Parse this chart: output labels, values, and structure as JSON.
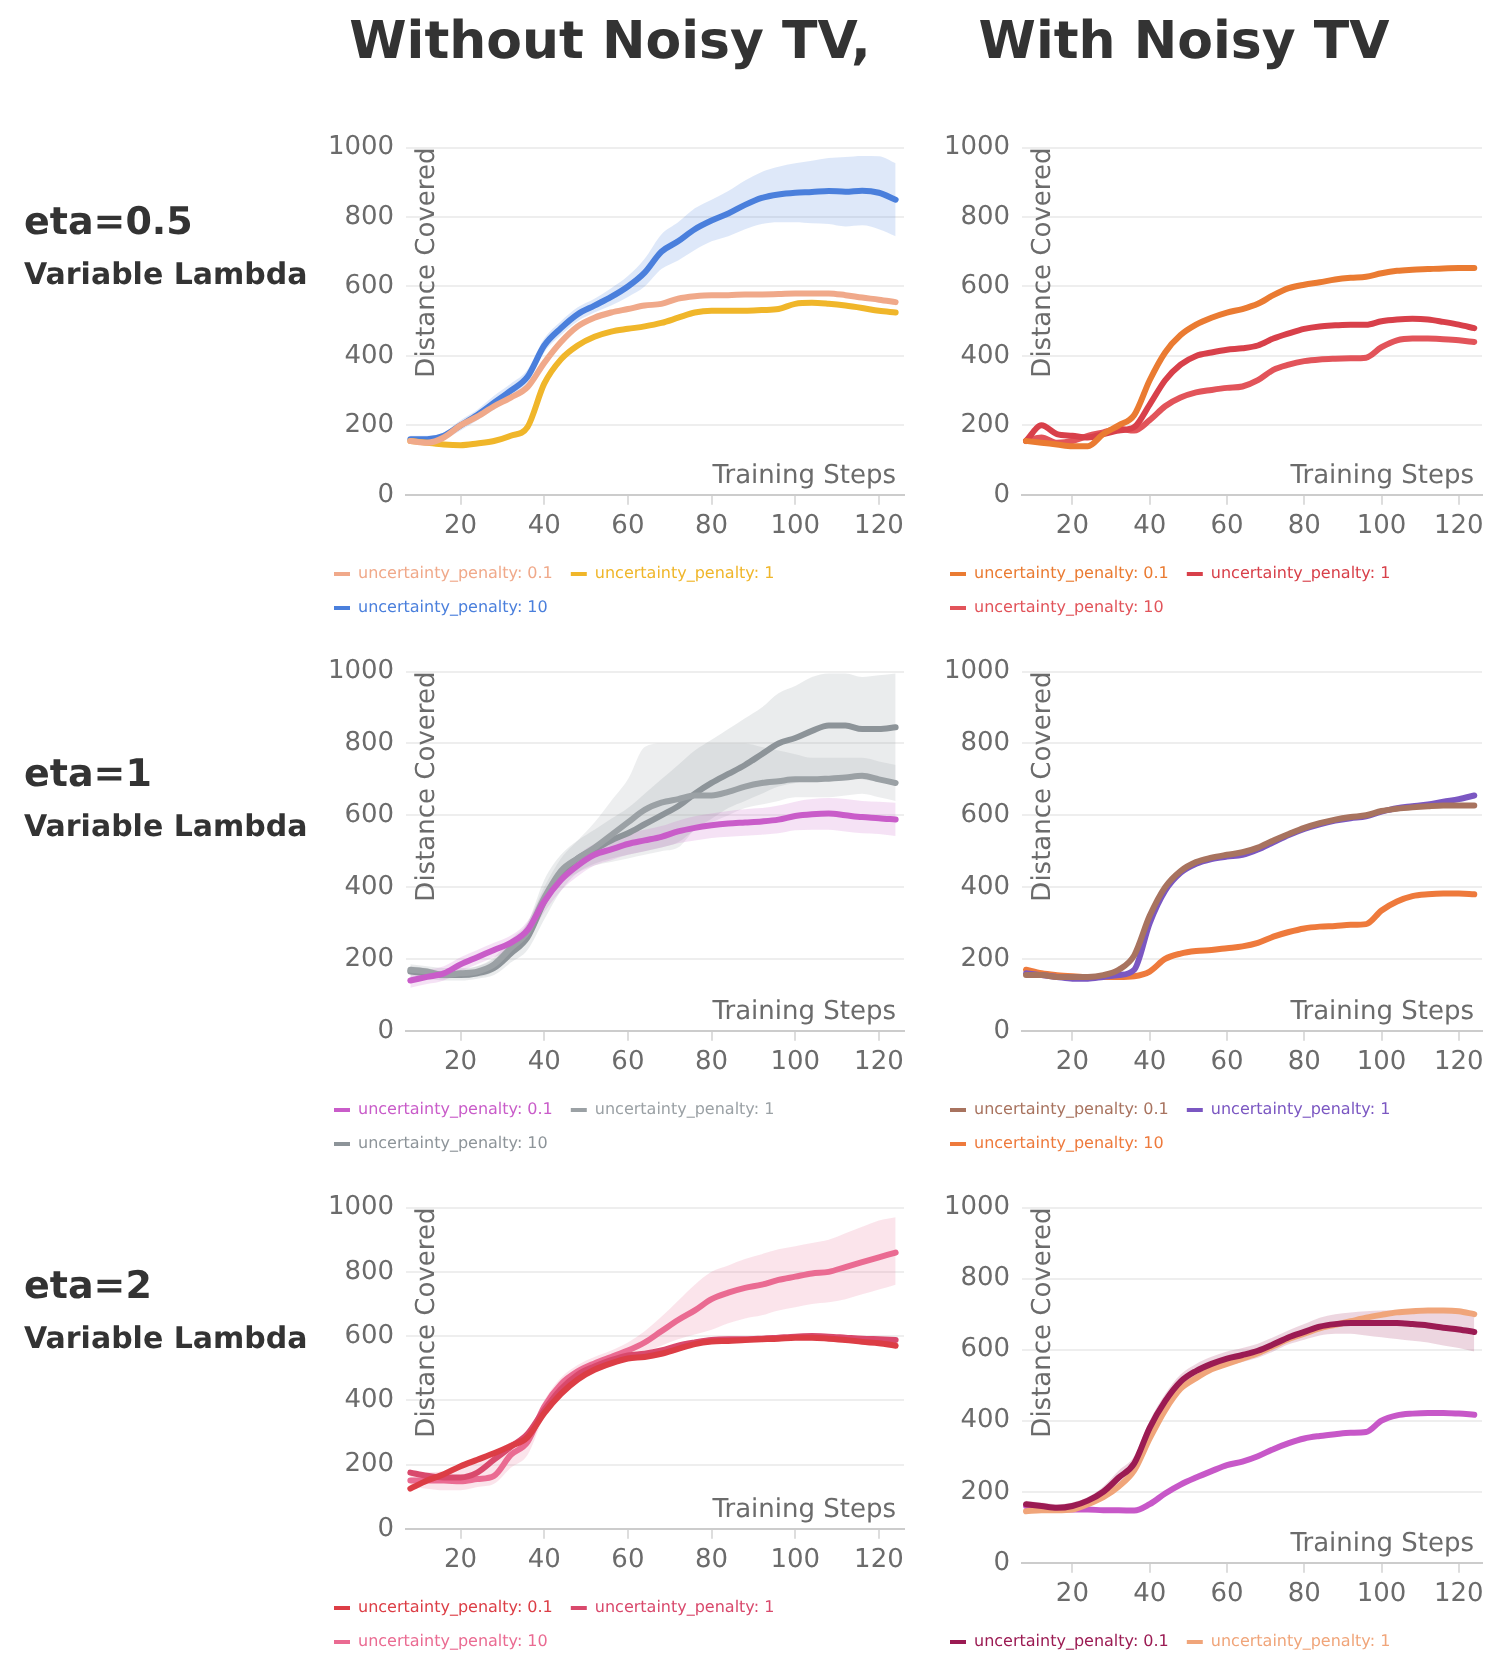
{
  "chart_data": [
    {
      "type": "line",
      "title": "Without Noisy TV,",
      "annotations": [
        "eta=0.5",
        "Variable Lambda"
      ],
      "xlabel": "Training Steps",
      "ylabel": "Distance Covered",
      "x": [
        8,
        12,
        16,
        20,
        24,
        28,
        32,
        36,
        40,
        44,
        48,
        52,
        56,
        60,
        64,
        68,
        72,
        76,
        80,
        84,
        88,
        92,
        96,
        100,
        104,
        108,
        112,
        116,
        120,
        124
      ],
      "xlim": [
        7,
        126
      ],
      "xticks": [
        20,
        40,
        60,
        80,
        100,
        120
      ],
      "ylim": [
        0,
        1000
      ],
      "yticks": [
        0,
        200,
        400,
        600,
        800,
        1000
      ],
      "grid": "y",
      "legend": "bottom",
      "marker": "none",
      "series": [
        {
          "name": "uncertainty_penalty: 0.1",
          "color": "#f0a98a",
          "values": [
            155,
            150,
            165,
            200,
            225,
            255,
            280,
            310,
            380,
            440,
            485,
            510,
            525,
            535,
            545,
            550,
            565,
            572,
            575,
            575,
            577,
            577,
            578,
            580,
            580,
            580,
            575,
            568,
            562,
            555
          ]
        },
        {
          "name": "uncertainty_penalty: 1",
          "color": "#f0b62a",
          "values": [
            155,
            150,
            145,
            143,
            148,
            155,
            170,
            195,
            320,
            390,
            430,
            455,
            470,
            478,
            485,
            495,
            510,
            525,
            530,
            530,
            530,
            532,
            535,
            550,
            553,
            550,
            545,
            538,
            530,
            525
          ]
        },
        {
          "name": "uncertainty_penalty: 10",
          "color": "#4a7fdc",
          "values": [
            160,
            160,
            170,
            200,
            230,
            265,
            300,
            340,
            430,
            480,
            520,
            545,
            570,
            600,
            640,
            700,
            730,
            765,
            790,
            810,
            835,
            855,
            865,
            870,
            872,
            875,
            873,
            876,
            870,
            850
          ],
          "upper": [
            170,
            170,
            180,
            215,
            245,
            285,
            320,
            360,
            450,
            500,
            540,
            565,
            595,
            630,
            680,
            750,
            785,
            825,
            850,
            875,
            905,
            930,
            945,
            955,
            962,
            970,
            973,
            976,
            975,
            955
          ],
          "lower": [
            150,
            150,
            160,
            185,
            215,
            245,
            280,
            320,
            410,
            460,
            500,
            525,
            545,
            570,
            600,
            650,
            675,
            705,
            730,
            745,
            765,
            780,
            785,
            785,
            782,
            780,
            773,
            776,
            765,
            745
          ]
        }
      ]
    },
    {
      "type": "line",
      "title": "With Noisy TV",
      "xlabel": "Training Steps",
      "ylabel": "Distance Covered",
      "x": [
        8,
        12,
        16,
        20,
        24,
        28,
        32,
        36,
        40,
        44,
        48,
        52,
        56,
        60,
        64,
        68,
        72,
        76,
        80,
        84,
        88,
        92,
        96,
        100,
        104,
        108,
        112,
        116,
        120,
        124
      ],
      "xlim": [
        7,
        126
      ],
      "xticks": [
        20,
        40,
        60,
        80,
        100,
        120
      ],
      "ylim": [
        0,
        1000
      ],
      "yticks": [
        0,
        200,
        400,
        600,
        800,
        1000
      ],
      "grid": "y",
      "legend": "bottom",
      "marker": "none",
      "series": [
        {
          "name": "uncertainty_penalty: 0.1",
          "color": "#ea7b32",
          "values": [
            155,
            150,
            145,
            140,
            140,
            175,
            200,
            230,
            330,
            410,
            460,
            490,
            510,
            525,
            535,
            550,
            575,
            595,
            605,
            612,
            620,
            625,
            628,
            638,
            645,
            648,
            650,
            652,
            653,
            653
          ]
        },
        {
          "name": "uncertainty_penalty: 1",
          "color": "#d8404a",
          "values": [
            155,
            200,
            175,
            170,
            165,
            175,
            185,
            195,
            260,
            330,
            375,
            400,
            410,
            418,
            422,
            430,
            450,
            465,
            478,
            485,
            488,
            490,
            490,
            500,
            505,
            507,
            505,
            498,
            490,
            480
          ]
        },
        {
          "name": "uncertainty_penalty: 10",
          "color": "#e2545a",
          "values": [
            155,
            165,
            150,
            155,
            170,
            180,
            190,
            185,
            215,
            255,
            280,
            295,
            302,
            308,
            312,
            330,
            360,
            375,
            385,
            390,
            392,
            393,
            395,
            425,
            445,
            450,
            450,
            448,
            445,
            440
          ]
        }
      ]
    },
    {
      "type": "line",
      "annotations": [
        "eta=1",
        "Variable Lambda"
      ],
      "xlabel": "Training Steps",
      "ylabel": "Distance Covered",
      "x": [
        8,
        12,
        16,
        20,
        24,
        28,
        32,
        36,
        40,
        44,
        48,
        52,
        56,
        60,
        64,
        68,
        72,
        76,
        80,
        84,
        88,
        92,
        96,
        100,
        104,
        108,
        112,
        116,
        120,
        124
      ],
      "xlim": [
        7,
        126
      ],
      "xticks": [
        20,
        40,
        60,
        80,
        100,
        120
      ],
      "ylim": [
        0,
        1000
      ],
      "yticks": [
        0,
        200,
        400,
        600,
        800,
        1000
      ],
      "grid": "y",
      "legend": "bottom",
      "marker": "none",
      "series": [
        {
          "name": "uncertainty_penalty: 0.1",
          "color": "#c95cc9",
          "values": [
            140,
            150,
            160,
            185,
            205,
            225,
            245,
            280,
            360,
            420,
            460,
            490,
            505,
            520,
            530,
            540,
            555,
            565,
            572,
            577,
            580,
            583,
            588,
            598,
            603,
            605,
            600,
            595,
            592,
            588
          ],
          "upper": [
            160,
            170,
            180,
            205,
            225,
            245,
            265,
            305,
            390,
            450,
            490,
            520,
            535,
            550,
            560,
            570,
            585,
            597,
            605,
            612,
            617,
            620,
            627,
            638,
            645,
            648,
            645,
            640,
            638,
            635
          ],
          "lower": [
            120,
            130,
            140,
            165,
            185,
            205,
            225,
            255,
            330,
            390,
            430,
            460,
            475,
            490,
            500,
            510,
            522,
            530,
            537,
            540,
            543,
            546,
            550,
            558,
            560,
            560,
            555,
            550,
            548,
            542
          ]
        },
        {
          "name": "uncertainty_penalty: 1",
          "color": "#9ba1a5",
          "values": [
            170,
            165,
            155,
            160,
            165,
            185,
            230,
            275,
            370,
            445,
            480,
            510,
            545,
            580,
            615,
            635,
            645,
            655,
            655,
            665,
            680,
            690,
            695,
            700,
            700,
            702,
            705,
            710,
            700,
            690
          ],
          "upper": [
            180,
            175,
            165,
            170,
            180,
            205,
            255,
            300,
            400,
            480,
            530,
            580,
            640,
            700,
            790,
            800,
            800,
            800,
            800,
            800,
            800,
            790,
            780,
            770,
            760,
            760,
            760,
            760,
            750,
            740
          ],
          "lower": [
            160,
            155,
            145,
            150,
            150,
            165,
            205,
            250,
            340,
            410,
            440,
            460,
            470,
            480,
            490,
            500,
            510,
            560,
            580,
            600,
            620,
            630,
            640,
            650,
            650,
            650,
            655,
            660,
            650,
            640
          ]
        },
        {
          "name": "uncertainty_penalty: 10",
          "color": "#8d9499",
          "values": [
            165,
            160,
            155,
            155,
            160,
            175,
            215,
            260,
            360,
            435,
            480,
            505,
            530,
            550,
            575,
            600,
            625,
            660,
            690,
            715,
            740,
            770,
            800,
            815,
            835,
            850,
            850,
            840,
            840,
            845
          ],
          "upper": [
            185,
            180,
            175,
            175,
            180,
            200,
            245,
            300,
            420,
            490,
            530,
            560,
            590,
            620,
            660,
            700,
            740,
            780,
            810,
            840,
            870,
            900,
            940,
            960,
            985,
            995,
            995,
            985,
            990,
            995
          ],
          "lower": [
            150,
            145,
            140,
            140,
            145,
            155,
            190,
            225,
            310,
            390,
            440,
            465,
            480,
            490,
            500,
            510,
            525,
            560,
            590,
            620,
            640,
            660,
            680,
            690,
            700,
            710,
            710,
            700,
            695,
            700
          ]
        }
      ]
    },
    {
      "type": "line",
      "xlabel": "Training Steps",
      "ylabel": "Distance Covered",
      "x": [
        8,
        12,
        16,
        20,
        24,
        28,
        32,
        36,
        40,
        44,
        48,
        52,
        56,
        60,
        64,
        68,
        72,
        76,
        80,
        84,
        88,
        92,
        96,
        100,
        104,
        108,
        112,
        116,
        120,
        124
      ],
      "xlim": [
        7,
        126
      ],
      "xticks": [
        20,
        40,
        60,
        80,
        100,
        120
      ],
      "ylim": [
        0,
        1000
      ],
      "yticks": [
        0,
        200,
        400,
        600,
        800,
        1000
      ],
      "grid": "y",
      "legend": "bottom",
      "marker": "none",
      "series": [
        {
          "name": "uncertainty_penalty: 0.1",
          "color": "#a8735f",
          "values": [
            155,
            155,
            150,
            150,
            150,
            155,
            170,
            210,
            320,
            400,
            445,
            470,
            482,
            490,
            497,
            510,
            530,
            548,
            565,
            578,
            588,
            595,
            600,
            612,
            618,
            622,
            625,
            627,
            627,
            627
          ]
        },
        {
          "name": "uncertainty_penalty: 1",
          "color": "#7b57c2",
          "values": [
            160,
            155,
            150,
            145,
            145,
            150,
            155,
            170,
            300,
            390,
            440,
            465,
            478,
            485,
            490,
            505,
            525,
            545,
            562,
            575,
            585,
            592,
            597,
            610,
            620,
            625,
            630,
            638,
            645,
            655
          ]
        },
        {
          "name": "uncertainty_penalty: 10",
          "color": "#ee7a3c",
          "values": [
            170,
            160,
            155,
            152,
            150,
            150,
            150,
            152,
            165,
            200,
            215,
            222,
            225,
            230,
            235,
            245,
            262,
            275,
            285,
            290,
            292,
            295,
            297,
            335,
            360,
            375,
            380,
            382,
            382,
            380
          ]
        }
      ]
    },
    {
      "type": "line",
      "annotations": [
        "eta=2",
        "Variable Lambda"
      ],
      "xlabel": "Training Steps",
      "ylabel": "Distance Covered",
      "x": [
        8,
        12,
        16,
        20,
        24,
        28,
        32,
        36,
        40,
        44,
        48,
        52,
        56,
        60,
        64,
        68,
        72,
        76,
        80,
        84,
        88,
        92,
        96,
        100,
        104,
        108,
        112,
        116,
        120,
        124
      ],
      "xlim": [
        7,
        126
      ],
      "xticks": [
        20,
        40,
        60,
        80,
        100,
        120
      ],
      "ylim": [
        0,
        1000
      ],
      "yticks": [
        0,
        200,
        400,
        600,
        800,
        1000
      ],
      "grid": "y",
      "legend": "bottom",
      "marker": "none",
      "series": [
        {
          "name": "uncertainty_penalty: 0.1",
          "color": "#dc3d45",
          "values": [
            125,
            150,
            170,
            195,
            215,
            235,
            258,
            285,
            360,
            420,
            465,
            495,
            515,
            530,
            535,
            545,
            560,
            575,
            583,
            585,
            588,
            590,
            592,
            595,
            595,
            592,
            588,
            582,
            578,
            570
          ]
        },
        {
          "name": "uncertainty_penalty: 1",
          "color": "#d9496c",
          "values": [
            175,
            165,
            160,
            160,
            175,
            215,
            255,
            295,
            370,
            435,
            480,
            505,
            525,
            540,
            545,
            555,
            570,
            580,
            588,
            590,
            590,
            592,
            595,
            598,
            600,
            598,
            595,
            592,
            590,
            588
          ]
        },
        {
          "name": "uncertainty_penalty: 10",
          "color": "#ea6b92",
          "values": [
            150,
            150,
            150,
            148,
            155,
            165,
            230,
            270,
            380,
            450,
            490,
            515,
            535,
            555,
            580,
            615,
            650,
            680,
            715,
            735,
            750,
            760,
            775,
            785,
            795,
            800,
            815,
            830,
            845,
            860
          ],
          "upper": [
            170,
            175,
            180,
            200,
            220,
            240,
            270,
            300,
            400,
            470,
            510,
            535,
            555,
            580,
            615,
            660,
            710,
            760,
            800,
            820,
            840,
            855,
            870,
            880,
            890,
            900,
            920,
            940,
            960,
            970
          ],
          "lower": [
            130,
            125,
            120,
            120,
            130,
            140,
            190,
            230,
            350,
            420,
            465,
            495,
            515,
            535,
            550,
            570,
            590,
            605,
            620,
            640,
            655,
            665,
            680,
            690,
            700,
            705,
            715,
            730,
            745,
            760
          ]
        }
      ]
    },
    {
      "type": "line",
      "xlabel": "Training Steps",
      "ylabel": "Distance Covered",
      "x": [
        8,
        12,
        16,
        20,
        24,
        28,
        32,
        36,
        40,
        44,
        48,
        52,
        56,
        60,
        64,
        68,
        72,
        76,
        80,
        84,
        88,
        92,
        96,
        100,
        104,
        108,
        112,
        116,
        120,
        124
      ],
      "xlim": [
        7,
        126
      ],
      "xticks": [
        20,
        40,
        60,
        80,
        100,
        120
      ],
      "ylim": [
        0,
        1000
      ],
      "yticks": [
        0,
        200,
        400,
        600,
        800,
        1000
      ],
      "grid": "y",
      "legend": "bottom",
      "marker": "none",
      "series": [
        {
          "name": "uncertainty_penalty: 0.1",
          "color": "#9b1b53",
          "values": [
            165,
            160,
            155,
            160,
            175,
            200,
            240,
            280,
            380,
            455,
            510,
            540,
            560,
            575,
            585,
            597,
            615,
            635,
            650,
            665,
            672,
            675,
            675,
            675,
            675,
            672,
            668,
            662,
            657,
            650
          ],
          "upper": [
            175,
            170,
            165,
            170,
            185,
            215,
            260,
            300,
            400,
            475,
            530,
            560,
            580,
            595,
            605,
            617,
            635,
            655,
            672,
            690,
            700,
            705,
            708,
            710,
            712,
            712,
            710,
            708,
            706,
            705
          ],
          "lower": [
            155,
            150,
            145,
            150,
            165,
            185,
            220,
            260,
            360,
            435,
            490,
            520,
            540,
            555,
            565,
            577,
            595,
            615,
            628,
            640,
            645,
            645,
            640,
            635,
            630,
            625,
            620,
            612,
            605,
            595
          ]
        },
        {
          "name": "uncertainty_penalty: 1",
          "color": "#f0a57a",
          "values": [
            145,
            148,
            148,
            150,
            165,
            185,
            215,
            260,
            350,
            430,
            490,
            520,
            545,
            560,
            575,
            590,
            610,
            630,
            645,
            660,
            670,
            680,
            690,
            698,
            705,
            708,
            710,
            710,
            708,
            700
          ]
        },
        {
          "color": "#c758c8",
          "values": [
            160,
            155,
            152,
            150,
            150,
            148,
            148,
            147,
            165,
            195,
            220,
            240,
            258,
            275,
            285,
            300,
            320,
            337,
            350,
            357,
            362,
            366,
            368,
            400,
            415,
            420,
            422,
            422,
            420,
            417
          ]
        }
      ]
    }
  ]
}
